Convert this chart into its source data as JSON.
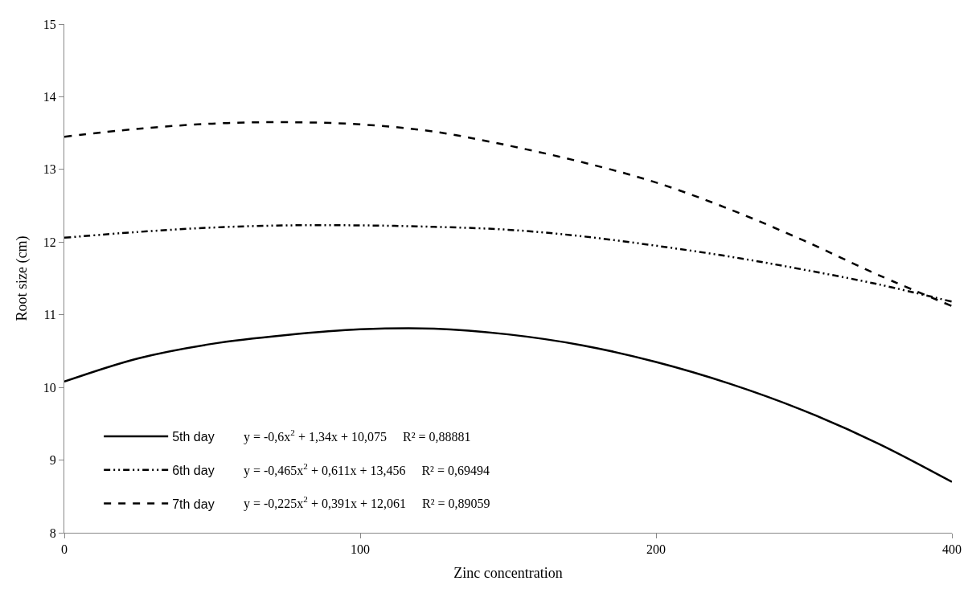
{
  "chart_data": {
    "type": "line",
    "xlabel": "Zinc concentration",
    "ylabel": "Root size (cm)",
    "categories": [
      "0",
      null,
      null,
      null,
      "100",
      null,
      null,
      null,
      "200",
      null,
      null,
      null,
      "400"
    ],
    "series": [
      {
        "name": "5th day",
        "color": "#000000",
        "line_style": "solid",
        "values": [
          10.08,
          10.4,
          10.6,
          10.72,
          10.8,
          10.81,
          10.73,
          10.58,
          10.35,
          10.05,
          9.68,
          9.23,
          8.7
        ]
      },
      {
        "name": "6th day",
        "color": "#000000",
        "line_style": "dashdot",
        "values": [
          12.06,
          12.14,
          12.2,
          12.23,
          12.23,
          12.21,
          12.17,
          12.08,
          11.95,
          11.8,
          11.62,
          11.42,
          11.18
        ]
      },
      {
        "name": "7th day",
        "color": "#000000",
        "line_style": "dashed",
        "values": [
          13.45,
          13.56,
          13.63,
          13.65,
          13.62,
          13.52,
          13.33,
          13.1,
          12.82,
          12.45,
          12.02,
          11.55,
          11.12
        ]
      }
    ],
    "annotations": [
      "y = -0,6x$^{2}$ + 1,34x + 10,075     R² = 0,88881",
      "y = -0,465x$^{2}$ + 0,611x + 13,456     R² = 0,69494",
      "y = -0,225x$^{2}$ + 0,391x + 12,061     R² = 0,89059"
    ],
    "ylim": [
      8,
      15
    ],
    "yticks": [
      8,
      9,
      10,
      11,
      12,
      13,
      14,
      15
    ],
    "grid": false,
    "legend": "bottom left",
    "marker": "none"
  }
}
